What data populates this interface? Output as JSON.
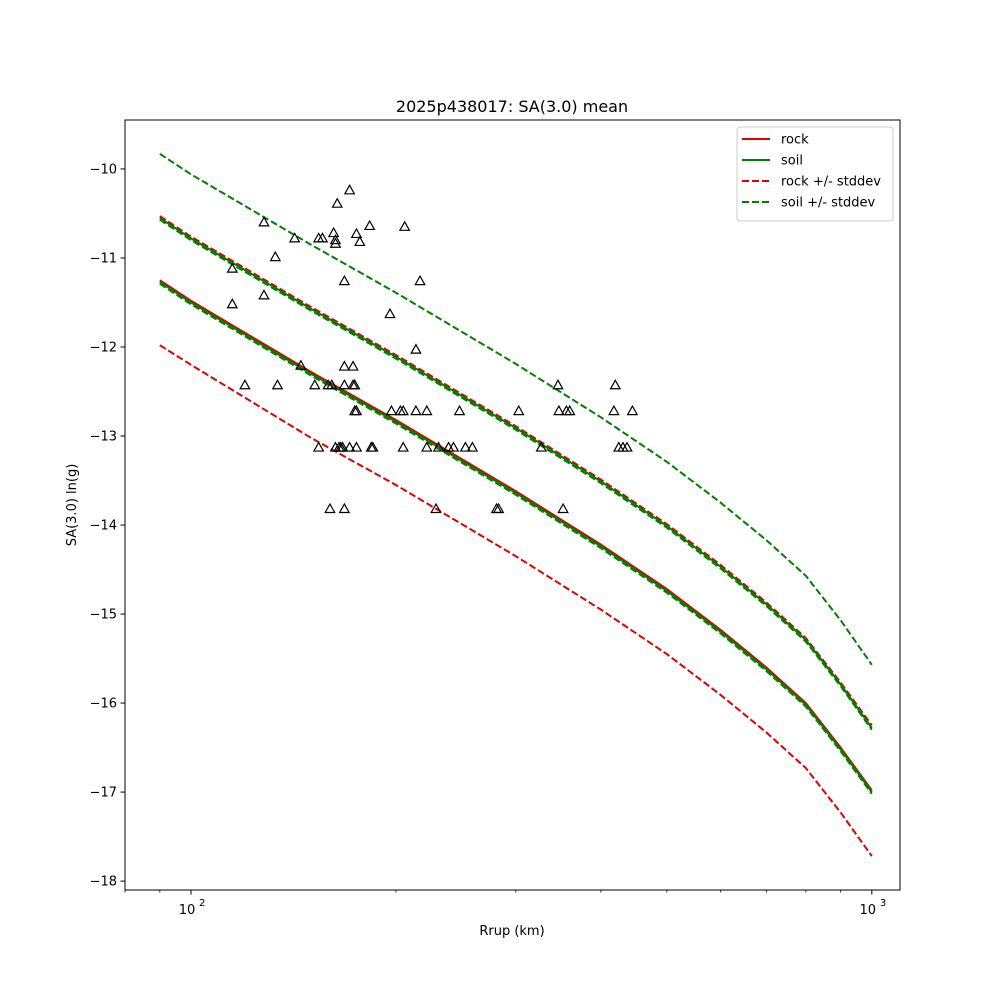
{
  "chart_data": {
    "type": "scatter",
    "title": "2025p438017: SA(3.0) mean",
    "xlabel": "Rrup (km)",
    "ylabel": "SA(3.0) ln(g)",
    "xscale": "log",
    "xlim": [
      80,
      1100
    ],
    "ylim": [
      -18.1,
      -9.45
    ],
    "grid": false,
    "legend_position": "top-right",
    "x_ticks": [
      {
        "value": 100,
        "label": "10",
        "exp": "2"
      },
      {
        "value": 1000,
        "label": "10",
        "exp": "3"
      }
    ],
    "x_minor_ticks": [
      80,
      90,
      200,
      300,
      400,
      500,
      600,
      700,
      800,
      900
    ],
    "y_ticks": [
      {
        "value": -10,
        "label": "−10"
      },
      {
        "value": -11,
        "label": "−11"
      },
      {
        "value": -12,
        "label": "−12"
      },
      {
        "value": -13,
        "label": "−13"
      },
      {
        "value": -14,
        "label": "−14"
      },
      {
        "value": -15,
        "label": "−15"
      },
      {
        "value": -16,
        "label": "−16"
      },
      {
        "value": -17,
        "label": "−17"
      },
      {
        "value": -18,
        "label": "−18"
      }
    ],
    "series": [
      {
        "name": "rock",
        "color": "#e00000",
        "style": "solid",
        "x": [
          90,
          100,
          150,
          200,
          300,
          400,
          500,
          600,
          700,
          800,
          900,
          1000
        ],
        "y": [
          -11.25,
          -11.48,
          -12.28,
          -12.82,
          -13.62,
          -14.22,
          -14.72,
          -15.18,
          -15.6,
          -16.0,
          -16.5,
          -16.98
        ]
      },
      {
        "name": "soil",
        "color": "#008000",
        "style": "solid",
        "x": [
          90,
          100,
          150,
          200,
          300,
          400,
          500,
          600,
          700,
          800,
          900,
          1000
        ],
        "y": [
          -11.27,
          -11.5,
          -12.3,
          -12.84,
          -13.64,
          -14.24,
          -14.74,
          -15.2,
          -15.62,
          -16.02,
          -16.52,
          -17.0
        ]
      },
      {
        "name": "rock +/- stddev",
        "color": "#e00000",
        "style": "dashed",
        "x": [
          90,
          100,
          150,
          200,
          300,
          400,
          500,
          600,
          700,
          800,
          900,
          1000
        ],
        "y": [
          -11.98,
          -12.2,
          -13.02,
          -13.55,
          -14.35,
          -14.95,
          -15.45,
          -15.91,
          -16.33,
          -16.73,
          -17.23,
          -17.72
        ]
      },
      {
        "name": "",
        "color": "#e00000",
        "style": "dashed",
        "x": [
          90,
          100,
          150,
          200,
          300,
          400,
          500,
          600,
          700,
          800,
          900,
          1000
        ],
        "y": [
          -10.53,
          -10.76,
          -11.55,
          -12.09,
          -12.89,
          -13.49,
          -13.99,
          -14.45,
          -14.87,
          -15.27,
          -15.77,
          -16.25
        ]
      },
      {
        "name": "",
        "color": "#008000",
        "style": "dashed",
        "x": [
          90,
          100,
          150,
          200,
          300,
          400,
          500,
          600,
          700,
          800,
          900,
          1000
        ],
        "y": [
          -11.29,
          -11.52,
          -12.32,
          -12.86,
          -13.66,
          -14.26,
          -14.76,
          -15.22,
          -15.64,
          -16.04,
          -16.54,
          -17.02
        ]
      },
      {
        "name": "",
        "color": "#008000",
        "style": "solid",
        "x": [
          90,
          100,
          150,
          200,
          300,
          400,
          500,
          600,
          700,
          800,
          900,
          1000
        ],
        "y": [
          -10.55,
          -10.78,
          -11.57,
          -12.11,
          -12.91,
          -13.51,
          -14.01,
          -14.47,
          -14.89,
          -15.29,
          -15.79,
          -16.28
        ]
      },
      {
        "name": "",
        "color": "#008000",
        "style": "dashed",
        "x": [
          90,
          100,
          150,
          200,
          300,
          400,
          500,
          600,
          700,
          800,
          900,
          1000
        ],
        "y": [
          -10.57,
          -10.8,
          -11.59,
          -12.13,
          -12.93,
          -13.53,
          -14.03,
          -14.49,
          -14.91,
          -15.31,
          -15.81,
          -16.3
        ]
      },
      {
        "name": "soil +/- stddev",
        "color": "#008000",
        "style": "dashed",
        "x": [
          90,
          100,
          150,
          200,
          300,
          400,
          500,
          600,
          700,
          800,
          900,
          1000
        ],
        "y": [
          -9.83,
          -10.06,
          -10.85,
          -11.39,
          -12.19,
          -12.79,
          -13.29,
          -13.75,
          -14.17,
          -14.57,
          -15.07,
          -15.57
        ]
      }
    ],
    "observations": {
      "marker": "triangle",
      "color": "#000000",
      "points": [
        [
          115,
          -11.12
        ],
        [
          115,
          -11.52
        ],
        [
          120,
          -12.43
        ],
        [
          128,
          -10.6
        ],
        [
          128,
          -11.42
        ],
        [
          133,
          -10.99
        ],
        [
          134,
          -12.43
        ],
        [
          142,
          -10.78
        ],
        [
          145,
          -12.21
        ],
        [
          152,
          -12.43
        ],
        [
          154,
          -10.78
        ],
        [
          154,
          -13.13
        ],
        [
          156,
          -10.78
        ],
        [
          159,
          -12.43
        ],
        [
          161,
          -12.43
        ],
        [
          160,
          -13.82
        ],
        [
          162,
          -10.72
        ],
        [
          163,
          -10.8
        ],
        [
          163,
          -10.84
        ],
        [
          164,
          -10.39
        ],
        [
          163,
          -13.13
        ],
        [
          165,
          -13.13
        ],
        [
          166,
          -13.13
        ],
        [
          167,
          -13.13
        ],
        [
          168,
          -12.22
        ],
        [
          168,
          -12.43
        ],
        [
          168,
          -11.26
        ],
        [
          168,
          -13.82
        ],
        [
          171,
          -10.24
        ],
        [
          171,
          -13.13
        ],
        [
          173,
          -12.22
        ],
        [
          173,
          -12.43
        ],
        [
          174,
          -12.43
        ],
        [
          174,
          -12.72
        ],
        [
          175,
          -12.72
        ],
        [
          175,
          -13.13
        ],
        [
          175,
          -10.73
        ],
        [
          177,
          -10.82
        ],
        [
          183,
          -10.64
        ],
        [
          184,
          -13.13
        ],
        [
          185,
          -13.13
        ],
        [
          196,
          -11.63
        ],
        [
          197,
          -12.72
        ],
        [
          203,
          -12.72
        ],
        [
          205,
          -12.72
        ],
        [
          205,
          -13.13
        ],
        [
          206,
          -10.65
        ],
        [
          214,
          -12.72
        ],
        [
          214,
          -12.03
        ],
        [
          217,
          -11.26
        ],
        [
          222,
          -12.72
        ],
        [
          222,
          -13.13
        ],
        [
          229,
          -13.82
        ],
        [
          231,
          -13.13
        ],
        [
          239,
          -13.13
        ],
        [
          243,
          -13.13
        ],
        [
          248,
          -12.72
        ],
        [
          253,
          -13.13
        ],
        [
          259,
          -13.13
        ],
        [
          281,
          -13.82
        ],
        [
          283,
          -13.82
        ],
        [
          303,
          -12.72
        ],
        [
          327,
          -13.13
        ],
        [
          346,
          -12.43
        ],
        [
          347,
          -12.72
        ],
        [
          352,
          -13.82
        ],
        [
          356,
          -12.72
        ],
        [
          360,
          -12.72
        ],
        [
          420,
          -12.43
        ],
        [
          418,
          -12.72
        ],
        [
          425,
          -13.13
        ],
        [
          431,
          -13.13
        ],
        [
          437,
          -13.13
        ],
        [
          445,
          -12.72
        ]
      ]
    }
  }
}
